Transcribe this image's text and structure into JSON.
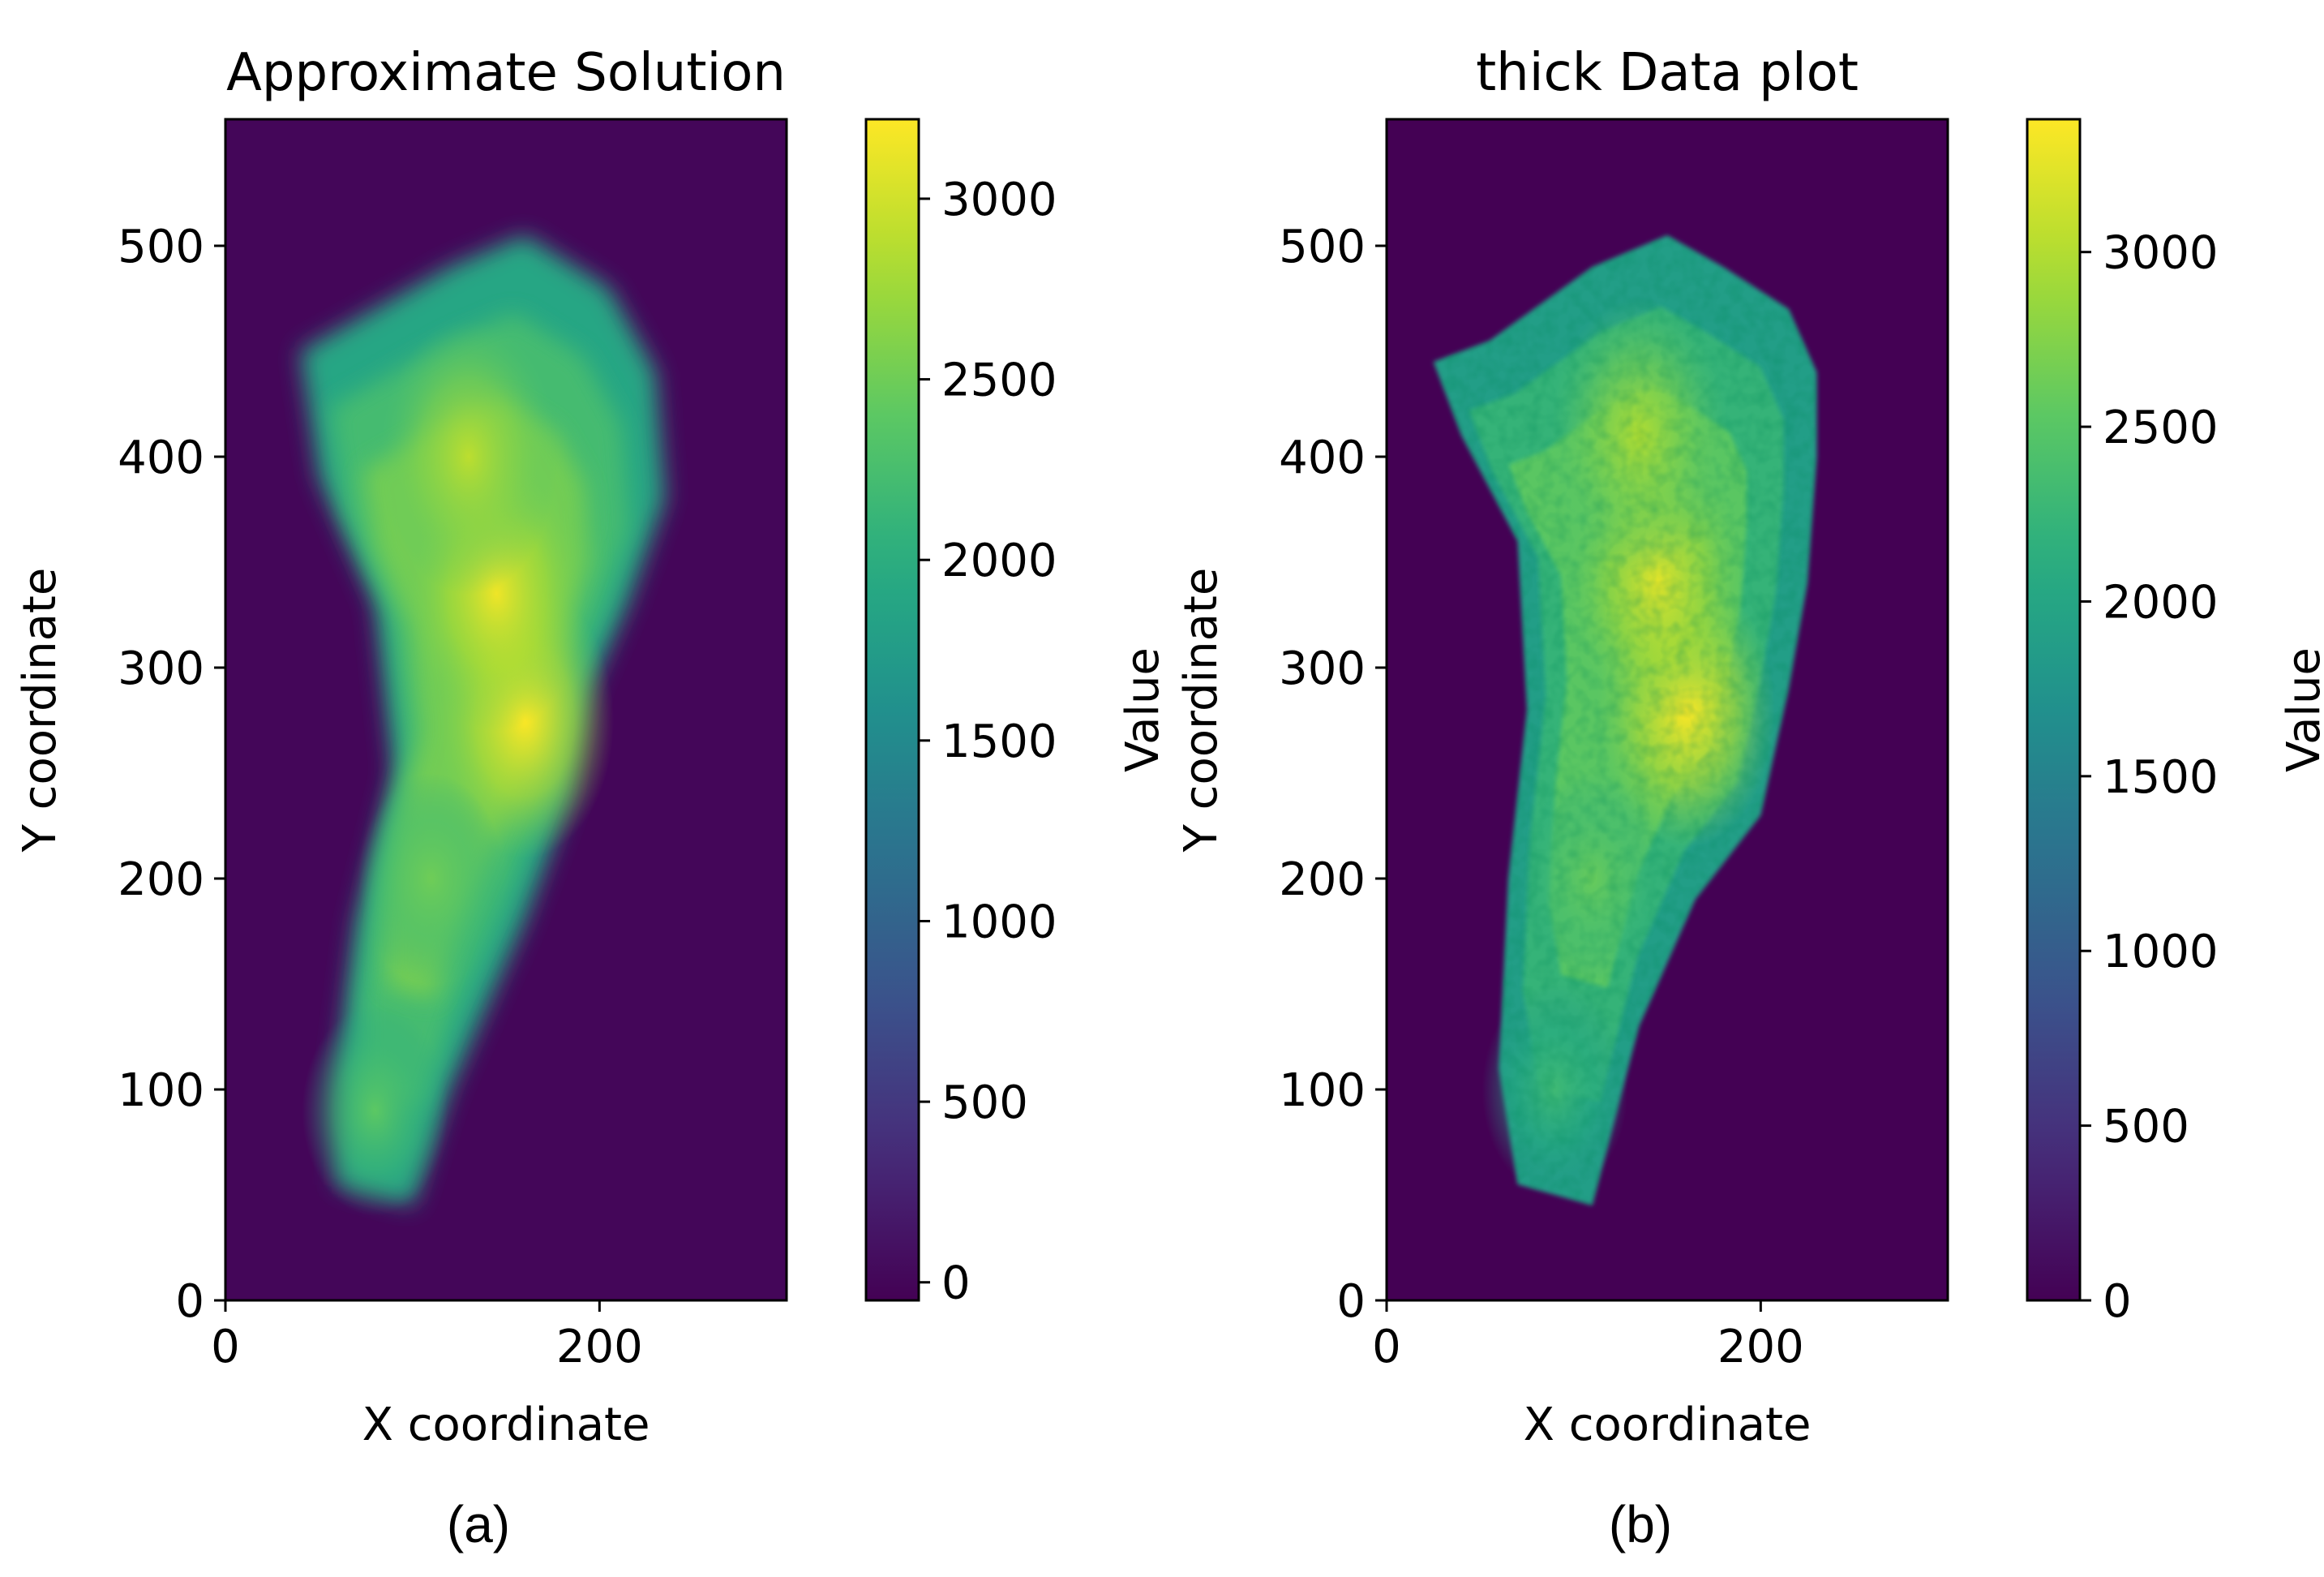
{
  "chart_data": [
    {
      "type": "heatmap",
      "panel_label": "(a)",
      "title": "Approximate Solution",
      "xlabel": "X coordinate",
      "ylabel": "Y coordinate",
      "xlim": [
        0,
        300
      ],
      "ylim": [
        0,
        560
      ],
      "xticks": [
        0,
        200
      ],
      "yticks": [
        0,
        100,
        200,
        300,
        400,
        500
      ],
      "colormap": "viridis",
      "colorbar": {
        "label": "Value",
        "range": [
          -50,
          3220
        ],
        "ticks": [
          0,
          500,
          1000,
          1500,
          2000,
          2500,
          3000
        ]
      },
      "field": {
        "background_value": 0,
        "outline": [
          [
            60,
            55
          ],
          [
            100,
            45
          ],
          [
            120,
            100
          ],
          [
            160,
            180
          ],
          [
            185,
            240
          ],
          [
            195,
            290
          ],
          [
            215,
            330
          ],
          [
            235,
            380
          ],
          [
            230,
            440
          ],
          [
            205,
            480
          ],
          [
            160,
            505
          ],
          [
            120,
            490
          ],
          [
            80,
            470
          ],
          [
            40,
            450
          ],
          [
            50,
            390
          ],
          [
            80,
            330
          ],
          [
            90,
            250
          ],
          [
            70,
            180
          ],
          [
            60,
            110
          ]
        ],
        "peaks": [
          {
            "x": 160,
            "y": 275,
            "value": 3220
          },
          {
            "x": 145,
            "y": 335,
            "value": 3150
          },
          {
            "x": 130,
            "y": 400,
            "value": 2900
          },
          {
            "x": 110,
            "y": 200,
            "value": 2500
          },
          {
            "x": 80,
            "y": 90,
            "value": 2400
          }
        ],
        "smooth": true
      }
    },
    {
      "type": "heatmap",
      "panel_label": "(b)",
      "title": "thick Data plot",
      "xlabel": "X coordinate",
      "ylabel": "Y coordinate",
      "xlim": [
        0,
        300
      ],
      "ylim": [
        0,
        560
      ],
      "xticks": [
        0,
        200
      ],
      "yticks": [
        0,
        100,
        200,
        300,
        400,
        500
      ],
      "colormap": "viridis",
      "colorbar": {
        "label": "Value",
        "range": [
          0,
          3380
        ],
        "ticks": [
          0,
          500,
          1000,
          1500,
          2000,
          2500,
          3000
        ]
      },
      "field": {
        "background_value": 0,
        "outline": [
          [
            70,
            55
          ],
          [
            110,
            45
          ],
          [
            135,
            130
          ],
          [
            165,
            190
          ],
          [
            200,
            230
          ],
          [
            215,
            290
          ],
          [
            225,
            340
          ],
          [
            230,
            400
          ],
          [
            230,
            440
          ],
          [
            215,
            470
          ],
          [
            180,
            490
          ],
          [
            150,
            505
          ],
          [
            110,
            490
          ],
          [
            55,
            455
          ],
          [
            25,
            445
          ],
          [
            40,
            410
          ],
          [
            70,
            360
          ],
          [
            75,
            280
          ],
          [
            65,
            200
          ],
          [
            60,
            110
          ]
        ],
        "peaks": [
          {
            "x": 160,
            "y": 280,
            "value": 3380
          },
          {
            "x": 145,
            "y": 340,
            "value": 3250
          },
          {
            "x": 135,
            "y": 410,
            "value": 3000
          },
          {
            "x": 110,
            "y": 200,
            "value": 2600
          },
          {
            "x": 90,
            "y": 100,
            "value": 2300
          }
        ],
        "smooth": false
      }
    }
  ]
}
